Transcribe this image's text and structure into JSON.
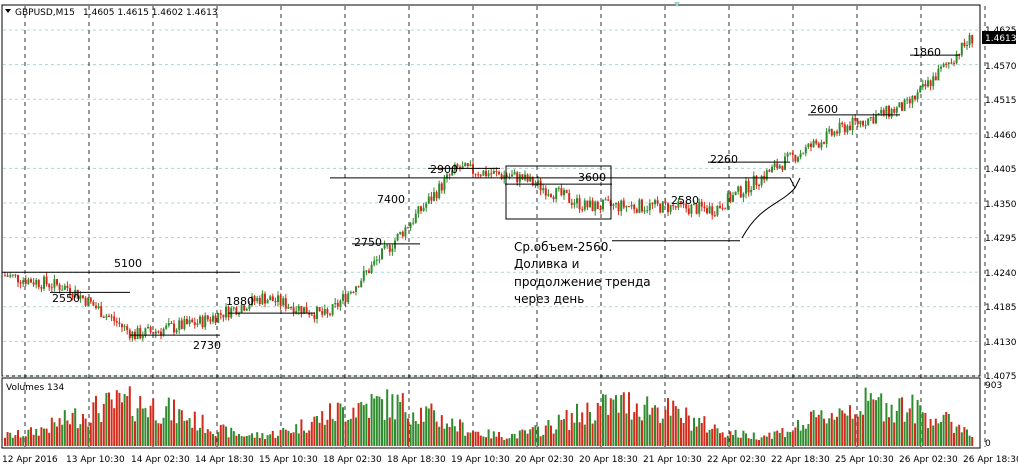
{
  "header": {
    "symbol": "GBPUSD,M15",
    "ohlc": "1.4605 1.4615 1.4602 1.4613"
  },
  "volume_panel": {
    "title": "Volumes 134",
    "scale_max_label": "903",
    "scale_zero_label": "0"
  },
  "price_axis": {
    "ticks": [
      "1.4625",
      "1.4570",
      "1.4515",
      "1.4460",
      "1.4405",
      "1.4350",
      "1.4295",
      "1.4240",
      "1.4185",
      "1.4130",
      "1.4075"
    ],
    "current_price_label": "1.4613"
  },
  "time_axis": {
    "ticks": [
      "12 Apr 2016",
      "13 Apr 10:30",
      "14 Apr 02:30",
      "14 Apr 18:30",
      "15 Apr 10:30",
      "18 Apr 02:30",
      "18 Apr 18:30",
      "19 Apr 10:30",
      "20 Apr 02:30",
      "20 Apr 18:30",
      "21 Apr 10:30",
      "22 Apr 02:30",
      "22 Apr 18:30",
      "25 Apr 10:30",
      "26 Apr 02:30",
      "26 Apr 18:30"
    ]
  },
  "annotations": {
    "labels": [
      "5100",
      "2550",
      "2730",
      "1880",
      "7400",
      "2750",
      "2900",
      "3600",
      "2580",
      "2260",
      "2600",
      "1860"
    ],
    "note_lines": [
      "Ср.объем-2560.",
      "Доливка и",
      "продолжение тренда",
      "через день"
    ]
  },
  "colors": {
    "bull": "#2e8b2e",
    "bear": "#d42a1a",
    "grid_h": "#a8d8d8",
    "grid_v": "#000000",
    "line": "#000000"
  },
  "chart_data": {
    "type": "candlestick",
    "symbol": "GBPUSD",
    "timeframe": "M15",
    "ylim": [
      1.4075,
      1.464
    ],
    "grid": true,
    "price_path": [
      [
        "12 Apr 2016",
        1.4235
      ],
      [
        "13 Apr 10:30",
        1.4215
      ],
      [
        "14 Apr 02:30",
        1.414
      ],
      [
        "14 Apr 18:30",
        1.416
      ],
      [
        "15 Apr 10:30",
        1.42
      ],
      [
        "18 Apr 02:30",
        1.417
      ],
      [
        "18 Apr 18:30",
        1.4285
      ],
      [
        "19 Apr 10:30",
        1.4405
      ],
      [
        "20 Apr 02:30",
        1.439
      ],
      [
        "20 Apr 18:30",
        1.4345
      ],
      [
        "21 Apr 10:30",
        1.4345
      ],
      [
        "22 Apr 02:30",
        1.434
      ],
      [
        "22 Apr 18:30",
        1.441
      ],
      [
        "25 Apr 10:30",
        1.447
      ],
      [
        "26 Apr 02:30",
        1.4505
      ],
      [
        "26 Apr 18:30",
        1.4613
      ]
    ],
    "level_labels": [
      {
        "label": "5100",
        "price": 1.424
      },
      {
        "label": "2550",
        "price": 1.4208
      },
      {
        "label": "2730",
        "price": 1.414
      },
      {
        "label": "1880",
        "price": 1.4175
      },
      {
        "label": "7400",
        "price": 1.439
      },
      {
        "label": "2750",
        "price": 1.4285
      },
      {
        "label": "2900",
        "price": 1.4405
      },
      {
        "label": "3600",
        "price": 1.438
      },
      {
        "label": "2580",
        "price": 1.429
      },
      {
        "label": "2260",
        "price": 1.4415
      },
      {
        "label": "2600",
        "price": 1.449
      },
      {
        "label": "1860",
        "price": 1.4585
      }
    ],
    "volume_max": 903
  }
}
